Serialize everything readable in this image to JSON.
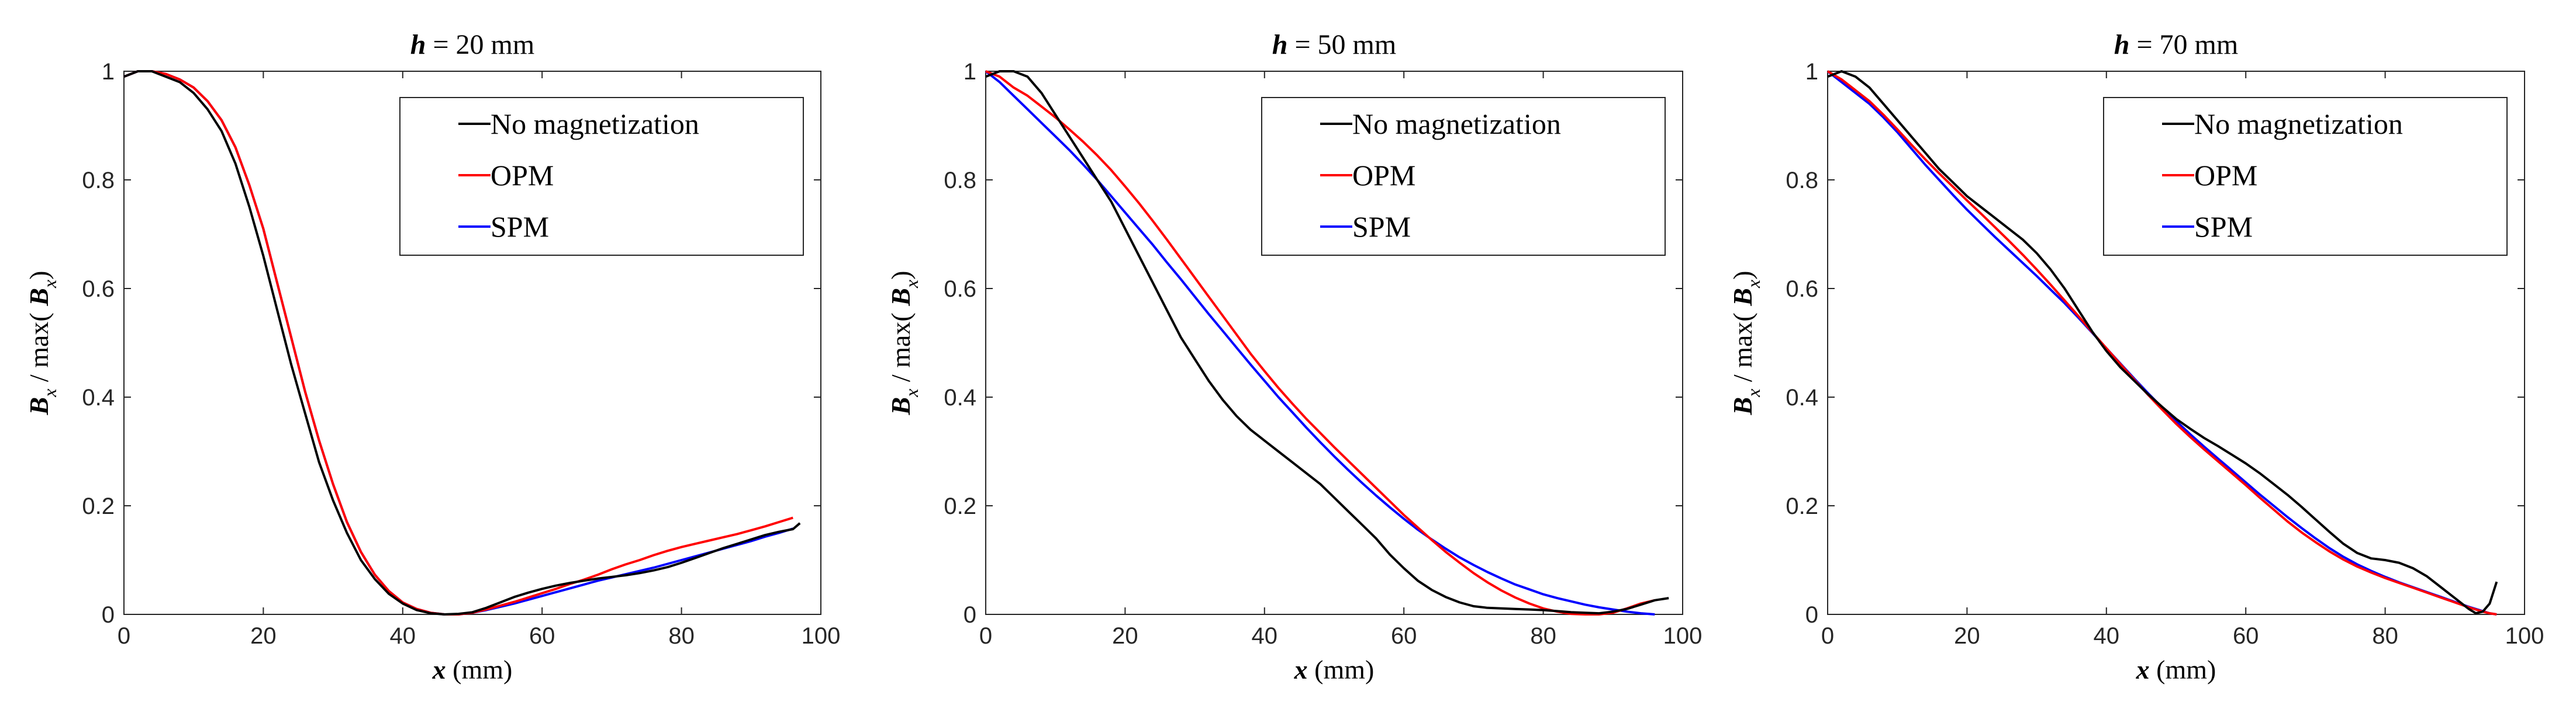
{
  "chart_data": [
    {
      "type": "line",
      "title_var": "h",
      "title": "= 20 mm",
      "xlabel_var": "x",
      "xlabel": "(mm)",
      "ylabel_num": "B",
      "ylabel_sub": "x",
      "ylabel_mid": " / max( ",
      "ylabel_den": "B",
      "ylabel_den_sub": "x",
      "ylabel_end": ")",
      "xlim": [
        0,
        100
      ],
      "ylim": [
        0,
        1
      ],
      "xticks": [
        "0",
        "20",
        "40",
        "60",
        "80",
        "100"
      ],
      "yticks": [
        "0",
        "0.2",
        "0.4",
        "0.6",
        "0.8",
        "1"
      ],
      "legend": {
        "position": "top-right",
        "entries": [
          "No magnetization",
          "OPM",
          "SPM"
        ]
      },
      "series": [
        {
          "name": "No magnetization",
          "color": "#000000",
          "x": [
            0,
            2,
            4,
            6,
            8,
            10,
            12,
            14,
            16,
            18,
            20,
            22,
            24,
            26,
            28,
            30,
            32,
            34,
            36,
            38,
            40,
            42,
            44,
            46,
            48,
            50,
            52,
            54,
            56,
            58,
            60,
            62,
            64,
            66,
            68,
            70,
            72,
            74,
            76,
            78,
            80,
            82,
            84,
            86,
            88,
            90,
            92,
            94,
            96,
            97
          ],
          "y": [
            0.99,
            1.0,
            1.0,
            0.99,
            0.98,
            0.96,
            0.93,
            0.89,
            0.83,
            0.75,
            0.66,
            0.56,
            0.46,
            0.37,
            0.28,
            0.21,
            0.15,
            0.1,
            0.065,
            0.038,
            0.02,
            0.008,
            0.002,
            0.0,
            0.001,
            0.004,
            0.012,
            0.022,
            0.032,
            0.04,
            0.047,
            0.053,
            0.058,
            0.062,
            0.066,
            0.069,
            0.072,
            0.076,
            0.081,
            0.087,
            0.095,
            0.104,
            0.113,
            0.122,
            0.13,
            0.138,
            0.146,
            0.152,
            0.157,
            0.168
          ]
        },
        {
          "name": "OPM",
          "color": "#ff0000",
          "x": [
            0,
            2,
            4,
            6,
            8,
            10,
            12,
            14,
            16,
            18,
            20,
            22,
            24,
            26,
            28,
            30,
            32,
            34,
            36,
            38,
            40,
            42,
            44,
            46,
            48,
            50,
            52,
            54,
            56,
            58,
            60,
            62,
            64,
            66,
            68,
            70,
            72,
            74,
            76,
            78,
            80,
            82,
            84,
            86,
            88,
            90,
            92,
            94,
            96
          ],
          "y": [
            0.99,
            1.0,
            1.0,
            0.995,
            0.985,
            0.97,
            0.945,
            0.91,
            0.86,
            0.79,
            0.71,
            0.61,
            0.51,
            0.41,
            0.32,
            0.24,
            0.17,
            0.115,
            0.073,
            0.043,
            0.022,
            0.01,
            0.003,
            0.0,
            0.0,
            0.003,
            0.009,
            0.016,
            0.023,
            0.031,
            0.039,
            0.047,
            0.056,
            0.064,
            0.073,
            0.083,
            0.092,
            0.1,
            0.109,
            0.117,
            0.124,
            0.13,
            0.136,
            0.142,
            0.148,
            0.155,
            0.162,
            0.17,
            0.178
          ]
        },
        {
          "name": "SPM",
          "color": "#0000ff",
          "x": [
            0,
            2,
            4,
            6,
            8,
            10,
            12,
            14,
            16,
            18,
            20,
            22,
            24,
            26,
            28,
            30,
            32,
            34,
            36,
            38,
            40,
            42,
            44,
            46,
            48,
            50,
            52,
            54,
            56,
            58,
            60,
            62,
            64,
            66,
            68,
            70,
            72,
            74,
            76,
            78,
            80,
            82,
            84,
            86,
            88,
            90,
            92,
            94,
            96
          ],
          "y": [
            0.99,
            1.0,
            1.0,
            0.995,
            0.985,
            0.97,
            0.945,
            0.91,
            0.86,
            0.79,
            0.71,
            0.61,
            0.51,
            0.41,
            0.32,
            0.24,
            0.17,
            0.115,
            0.073,
            0.043,
            0.022,
            0.01,
            0.003,
            0.0,
            0.0,
            0.003,
            0.008,
            0.014,
            0.02,
            0.027,
            0.034,
            0.041,
            0.048,
            0.055,
            0.062,
            0.068,
            0.074,
            0.08,
            0.086,
            0.093,
            0.1,
            0.107,
            0.114,
            0.121,
            0.128,
            0.135,
            0.143,
            0.15,
            0.158
          ]
        }
      ]
    },
    {
      "type": "line",
      "title_var": "h",
      "title": "= 50 mm",
      "xlabel_var": "x",
      "xlabel": "(mm)",
      "ylabel_num": "B",
      "ylabel_sub": "x",
      "ylabel_mid": " / max( ",
      "ylabel_den": "B",
      "ylabel_den_sub": "x",
      "ylabel_end": ")",
      "xlim": [
        0,
        100
      ],
      "ylim": [
        0,
        1
      ],
      "xticks": [
        "0",
        "20",
        "40",
        "60",
        "80",
        "100"
      ],
      "yticks": [
        "0",
        "0.2",
        "0.4",
        "0.6",
        "0.8",
        "1"
      ],
      "legend": {
        "position": "top-right",
        "entries": [
          "No magnetization",
          "OPM",
          "SPM"
        ]
      },
      "series": [
        {
          "name": "No magnetization",
          "color": "#000000",
          "x": [
            0,
            2,
            4,
            6,
            8,
            10,
            12,
            14,
            16,
            18,
            20,
            22,
            24,
            26,
            28,
            30,
            32,
            34,
            36,
            38,
            40,
            42,
            44,
            46,
            48,
            50,
            52,
            54,
            56,
            58,
            60,
            62,
            64,
            66,
            68,
            70,
            72,
            74,
            76,
            78,
            80,
            82,
            84,
            86,
            88,
            90,
            92,
            94,
            96,
            98
          ],
          "y": [
            0.99,
            1.0,
            1.0,
            0.99,
            0.96,
            0.92,
            0.88,
            0.84,
            0.8,
            0.76,
            0.71,
            0.66,
            0.61,
            0.56,
            0.51,
            0.47,
            0.43,
            0.395,
            0.365,
            0.34,
            0.32,
            0.3,
            0.28,
            0.26,
            0.24,
            0.215,
            0.19,
            0.165,
            0.14,
            0.11,
            0.085,
            0.062,
            0.045,
            0.032,
            0.022,
            0.015,
            0.012,
            0.011,
            0.01,
            0.009,
            0.008,
            0.006,
            0.004,
            0.003,
            0.002,
            0.005,
            0.01,
            0.018,
            0.026,
            0.03
          ]
        },
        {
          "name": "OPM",
          "color": "#ff0000",
          "x": [
            0,
            2,
            4,
            6,
            8,
            10,
            12,
            14,
            16,
            18,
            20,
            22,
            24,
            26,
            28,
            30,
            32,
            34,
            36,
            38,
            40,
            42,
            44,
            46,
            48,
            50,
            52,
            54,
            56,
            58,
            60,
            62,
            64,
            66,
            68,
            70,
            72,
            74,
            76,
            78,
            80,
            82,
            84,
            86,
            88,
            90,
            92,
            94,
            96
          ],
          "y": [
            1.0,
            0.99,
            0.97,
            0.955,
            0.935,
            0.915,
            0.893,
            0.87,
            0.845,
            0.818,
            0.788,
            0.757,
            0.724,
            0.69,
            0.655,
            0.62,
            0.585,
            0.55,
            0.515,
            0.48,
            0.448,
            0.417,
            0.388,
            0.36,
            0.334,
            0.308,
            0.283,
            0.258,
            0.233,
            0.208,
            0.183,
            0.16,
            0.137,
            0.115,
            0.095,
            0.076,
            0.059,
            0.044,
            0.031,
            0.02,
            0.011,
            0.005,
            0.001,
            0.0,
            0.0,
            0.003,
            0.011,
            0.02,
            0.026
          ]
        },
        {
          "name": "SPM",
          "color": "#0000ff",
          "x": [
            0,
            2,
            4,
            6,
            8,
            10,
            12,
            14,
            16,
            18,
            20,
            22,
            24,
            26,
            28,
            30,
            32,
            34,
            36,
            38,
            40,
            42,
            44,
            46,
            48,
            50,
            52,
            54,
            56,
            58,
            60,
            62,
            64,
            66,
            68,
            70,
            72,
            74,
            76,
            78,
            80,
            82,
            84,
            86,
            88,
            90,
            92,
            94,
            96
          ],
          "y": [
            1.0,
            0.98,
            0.955,
            0.93,
            0.905,
            0.88,
            0.855,
            0.828,
            0.8,
            0.77,
            0.74,
            0.71,
            0.68,
            0.648,
            0.617,
            0.585,
            0.553,
            0.522,
            0.491,
            0.46,
            0.43,
            0.4,
            0.372,
            0.344,
            0.317,
            0.291,
            0.266,
            0.242,
            0.219,
            0.197,
            0.176,
            0.156,
            0.138,
            0.121,
            0.105,
            0.091,
            0.078,
            0.066,
            0.055,
            0.046,
            0.037,
            0.03,
            0.024,
            0.018,
            0.013,
            0.009,
            0.005,
            0.002,
            0.0
          ]
        }
      ]
    },
    {
      "type": "line",
      "title_var": "h",
      "title": "= 70 mm",
      "xlabel_var": "x",
      "xlabel": "(mm)",
      "ylabel_num": "B",
      "ylabel_sub": "x",
      "ylabel_mid": " / max( ",
      "ylabel_den": "B",
      "ylabel_den_sub": "x",
      "ylabel_end": ")",
      "xlim": [
        0,
        100
      ],
      "ylim": [
        0,
        1
      ],
      "xticks": [
        "0",
        "20",
        "40",
        "60",
        "80",
        "100"
      ],
      "yticks": [
        "0",
        "0.2",
        "0.4",
        "0.6",
        "0.8",
        "1"
      ],
      "legend": {
        "position": "top-right",
        "entries": [
          "No magnetization",
          "OPM",
          "SPM"
        ]
      },
      "series": [
        {
          "name": "No magnetization",
          "color": "#000000",
          "x": [
            0,
            2,
            4,
            6,
            8,
            10,
            12,
            14,
            16,
            18,
            20,
            22,
            24,
            26,
            28,
            30,
            32,
            34,
            36,
            38,
            40,
            42,
            44,
            46,
            48,
            50,
            52,
            54,
            56,
            58,
            60,
            62,
            64,
            66,
            68,
            70,
            72,
            74,
            76,
            78,
            80,
            82,
            84,
            86,
            88,
            90,
            92,
            93,
            94,
            95,
            96
          ],
          "y": [
            0.99,
            1.0,
            0.99,
            0.97,
            0.94,
            0.91,
            0.88,
            0.85,
            0.82,
            0.795,
            0.77,
            0.75,
            0.73,
            0.71,
            0.69,
            0.665,
            0.635,
            0.6,
            0.56,
            0.52,
            0.485,
            0.455,
            0.43,
            0.405,
            0.382,
            0.36,
            0.342,
            0.325,
            0.31,
            0.294,
            0.278,
            0.26,
            0.24,
            0.22,
            0.198,
            0.175,
            0.152,
            0.13,
            0.113,
            0.103,
            0.1,
            0.095,
            0.085,
            0.07,
            0.05,
            0.03,
            0.01,
            0.002,
            0.005,
            0.02,
            0.06
          ]
        },
        {
          "name": "OPM",
          "color": "#ff0000",
          "x": [
            0,
            2,
            4,
            6,
            8,
            10,
            12,
            14,
            16,
            18,
            20,
            22,
            24,
            26,
            28,
            30,
            32,
            34,
            36,
            38,
            40,
            42,
            44,
            46,
            48,
            50,
            52,
            54,
            56,
            58,
            60,
            62,
            64,
            66,
            68,
            70,
            72,
            74,
            76,
            78,
            80,
            82,
            84,
            86,
            88,
            90,
            92,
            94,
            95,
            96
          ],
          "y": [
            1.0,
            0.985,
            0.965,
            0.945,
            0.92,
            0.893,
            0.865,
            0.838,
            0.812,
            0.787,
            0.762,
            0.738,
            0.713,
            0.688,
            0.662,
            0.635,
            0.607,
            0.578,
            0.549,
            0.519,
            0.49,
            0.461,
            0.432,
            0.404,
            0.377,
            0.351,
            0.327,
            0.304,
            0.282,
            0.26,
            0.238,
            0.215,
            0.193,
            0.171,
            0.151,
            0.133,
            0.116,
            0.101,
            0.088,
            0.077,
            0.067,
            0.058,
            0.049,
            0.04,
            0.031,
            0.022,
            0.013,
            0.005,
            0.002,
            0.0
          ]
        },
        {
          "name": "SPM",
          "color": "#0000ff",
          "x": [
            0,
            2,
            4,
            6,
            8,
            10,
            12,
            14,
            16,
            18,
            20,
            22,
            24,
            26,
            28,
            30,
            32,
            34,
            36,
            38,
            40,
            42,
            44,
            46,
            48,
            50,
            52,
            54,
            56,
            58,
            60,
            62,
            64,
            66,
            68,
            70,
            72,
            74,
            76,
            78,
            80,
            82,
            84,
            86,
            88,
            90,
            92,
            94,
            95,
            96
          ],
          "y": [
            1.0,
            0.98,
            0.96,
            0.94,
            0.915,
            0.888,
            0.858,
            0.828,
            0.8,
            0.772,
            0.745,
            0.72,
            0.695,
            0.671,
            0.647,
            0.623,
            0.598,
            0.573,
            0.546,
            0.518,
            0.49,
            0.462,
            0.434,
            0.407,
            0.381,
            0.356,
            0.332,
            0.309,
            0.287,
            0.265,
            0.243,
            0.221,
            0.2,
            0.179,
            0.159,
            0.14,
            0.122,
            0.106,
            0.092,
            0.08,
            0.069,
            0.059,
            0.05,
            0.041,
            0.032,
            0.023,
            0.014,
            0.006,
            0.002,
            0.0
          ]
        }
      ]
    }
  ]
}
